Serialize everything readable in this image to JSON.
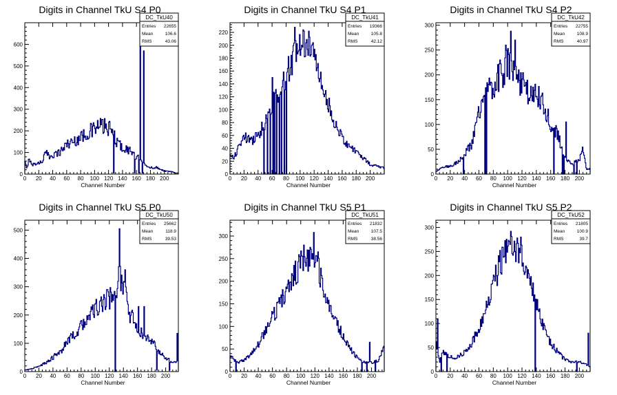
{
  "style": {
    "line_color": "#00007f",
    "frame_color": "#000000",
    "background": "#ffffff"
  },
  "chart_data": [
    {
      "type": "bar",
      "title": "Digits in Channel TkU S4 P0",
      "xlabel": "Channel Number",
      "xlim": [
        0,
        220
      ],
      "ylim": [
        0,
        700
      ],
      "xticks": [
        0,
        20,
        40,
        60,
        80,
        100,
        120,
        140,
        160,
        180,
        200
      ],
      "yticks": [
        100,
        200,
        300,
        400,
        500,
        600
      ],
      "stats": {
        "name": "DC_TkU40",
        "entries_label": "Entries",
        "entries": "22655",
        "mean_label": "Mean",
        "mean": "106.6",
        "rms_label": "RMS",
        "rms": "43.06"
      },
      "profile": [
        [
          0,
          60
        ],
        [
          3,
          20
        ],
        [
          6,
          80
        ],
        [
          10,
          40
        ],
        [
          15,
          50
        ],
        [
          20,
          50
        ],
        [
          25,
          60
        ],
        [
          30,
          100
        ],
        [
          35,
          80
        ],
        [
          40,
          90
        ],
        [
          50,
          100
        ],
        [
          60,
          140
        ],
        [
          70,
          150
        ],
        [
          80,
          170
        ],
        [
          90,
          190
        ],
        [
          100,
          210
        ],
        [
          110,
          225
        ],
        [
          120,
          210
        ],
        [
          125,
          200
        ],
        [
          130,
          160
        ],
        [
          140,
          120
        ],
        [
          150,
          110
        ],
        [
          155,
          100
        ],
        [
          160,
          70
        ],
        [
          165,
          80
        ],
        [
          170,
          60
        ],
        [
          175,
          30
        ],
        [
          190,
          30
        ],
        [
          200,
          15
        ],
        [
          212,
          10
        ],
        [
          216,
          5
        ]
      ],
      "spikes": [
        [
          165,
          640
        ],
        [
          170,
          570
        ],
        [
          128,
          200
        ],
        [
          135,
          150
        ]
      ],
      "dips": [
        [
          127,
          5
        ],
        [
          157,
          5
        ],
        [
          163,
          5
        ],
        [
          168,
          5
        ]
      ],
      "noise": 0.18
    },
    {
      "type": "bar",
      "title": "Digits in Channel TkU S4 P1",
      "xlabel": "Channel Number",
      "xlim": [
        0,
        220
      ],
      "ylim": [
        0,
        235
      ],
      "xticks": [
        0,
        20,
        40,
        60,
        80,
        100,
        120,
        140,
        160,
        180,
        200
      ],
      "yticks": [
        20,
        40,
        60,
        80,
        100,
        120,
        140,
        160,
        180,
        200,
        220
      ],
      "stats": {
        "name": "DC_TkU41",
        "entries_label": "Entries",
        "entries": "19366",
        "mean_label": "Mean",
        "mean": "105.8",
        "rms_label": "RMS",
        "rms": "42.12"
      },
      "profile": [
        [
          0,
          30
        ],
        [
          5,
          25
        ],
        [
          10,
          35
        ],
        [
          20,
          60
        ],
        [
          30,
          50
        ],
        [
          40,
          60
        ],
        [
          50,
          80
        ],
        [
          60,
          110
        ],
        [
          70,
          130
        ],
        [
          80,
          150
        ],
        [
          90,
          180
        ],
        [
          100,
          200
        ],
        [
          110,
          200
        ],
        [
          120,
          185
        ],
        [
          130,
          140
        ],
        [
          140,
          110
        ],
        [
          150,
          80
        ],
        [
          160,
          55
        ],
        [
          170,
          45
        ],
        [
          180,
          35
        ],
        [
          190,
          25
        ],
        [
          200,
          15
        ],
        [
          210,
          12
        ],
        [
          218,
          10
        ]
      ],
      "spikes": [
        [
          92,
          228
        ],
        [
          104,
          224
        ],
        [
          112,
          222
        ],
        [
          60,
          150
        ]
      ],
      "dips": [
        [
          48,
          0
        ],
        [
          53,
          0
        ],
        [
          57,
          0
        ],
        [
          61,
          0
        ],
        [
          63,
          0
        ],
        [
          66,
          0
        ],
        [
          70,
          0
        ],
        [
          73,
          0
        ],
        [
          77,
          0
        ],
        [
          80,
          0
        ]
      ],
      "noise": 0.14
    },
    {
      "type": "bar",
      "title": "Digits in Channel TkU S4 P2",
      "xlabel": "Channel Number",
      "xlim": [
        0,
        215
      ],
      "ylim": [
        0,
        305
      ],
      "xticks": [
        0,
        20,
        40,
        60,
        80,
        100,
        120,
        140,
        160,
        180,
        200
      ],
      "yticks": [
        50,
        100,
        150,
        200,
        250,
        300
      ],
      "stats": {
        "name": "DC_TkU42",
        "entries_label": "Entries",
        "entries": "22755",
        "mean_label": "Mean",
        "mean": "108.9",
        "rms_label": "RMS",
        "rms": "40.97"
      },
      "profile": [
        [
          0,
          5
        ],
        [
          10,
          15
        ],
        [
          20,
          15
        ],
        [
          30,
          25
        ],
        [
          40,
          40
        ],
        [
          50,
          60
        ],
        [
          55,
          90
        ],
        [
          60,
          130
        ],
        [
          70,
          160
        ],
        [
          80,
          180
        ],
        [
          90,
          200
        ],
        [
          100,
          220
        ],
        [
          110,
          210
        ],
        [
          120,
          180
        ],
        [
          130,
          160
        ],
        [
          140,
          160
        ],
        [
          150,
          140
        ],
        [
          160,
          100
        ],
        [
          170,
          80
        ],
        [
          180,
          30
        ],
        [
          190,
          20
        ],
        [
          200,
          30
        ],
        [
          205,
          50
        ],
        [
          210,
          10
        ]
      ],
      "spikes": [
        [
          104,
          288
        ],
        [
          97,
          260
        ],
        [
          110,
          270
        ],
        [
          181,
          105
        ]
      ],
      "dips": [
        [
          38,
          0
        ],
        [
          68,
          0
        ],
        [
          70,
          0
        ],
        [
          164,
          0
        ],
        [
          176,
          0
        ],
        [
          178,
          0
        ],
        [
          192,
          0
        ],
        [
          196,
          0
        ]
      ],
      "noise": 0.16
    },
    {
      "type": "bar",
      "title": "Digits in Channel TkU S5 P0",
      "xlabel": "Channel Number",
      "xlim": [
        0,
        218
      ],
      "ylim": [
        0,
        535
      ],
      "xticks": [
        0,
        20,
        40,
        60,
        80,
        100,
        120,
        140,
        160,
        180,
        200
      ],
      "yticks": [
        100,
        200,
        300,
        400,
        500
      ],
      "stats": {
        "name": "DC_TkU50",
        "entries_label": "Entries",
        "entries": "25662",
        "mean_label": "Mean",
        "mean": "118.9",
        "rms_label": "RMS",
        "rms": "39.53"
      },
      "profile": [
        [
          0,
          5
        ],
        [
          10,
          10
        ],
        [
          20,
          20
        ],
        [
          30,
          30
        ],
        [
          40,
          50
        ],
        [
          50,
          70
        ],
        [
          60,
          100
        ],
        [
          70,
          130
        ],
        [
          80,
          160
        ],
        [
          90,
          190
        ],
        [
          100,
          220
        ],
        [
          110,
          240
        ],
        [
          120,
          260
        ],
        [
          125,
          270
        ],
        [
          130,
          250
        ],
        [
          135,
          350
        ],
        [
          140,
          300
        ],
        [
          145,
          250
        ],
        [
          150,
          200
        ],
        [
          160,
          160
        ],
        [
          170,
          120
        ],
        [
          180,
          110
        ],
        [
          190,
          70
        ],
        [
          200,
          50
        ],
        [
          210,
          30
        ],
        [
          216,
          40
        ]
      ],
      "spikes": [
        [
          134,
          505
        ],
        [
          126,
          270
        ],
        [
          142,
          360
        ],
        [
          161,
          230
        ],
        [
          169,
          230
        ],
        [
          216,
          135
        ]
      ],
      "dips": [
        [
          128,
          0
        ],
        [
          187,
          5
        ],
        [
          205,
          5
        ]
      ],
      "noise": 0.16
    },
    {
      "type": "bar",
      "title": "Digits in Channel TkU S5 P1",
      "xlabel": "Channel Number",
      "xlim": [
        0,
        218
      ],
      "ylim": [
        0,
        335
      ],
      "xticks": [
        0,
        20,
        40,
        60,
        80,
        100,
        120,
        140,
        160,
        180,
        200
      ],
      "yticks": [
        50,
        100,
        150,
        200,
        250,
        300
      ],
      "stats": {
        "name": "DC_TkU51",
        "entries_label": "Entries",
        "entries": "21832",
        "mean_label": "Mean",
        "mean": "107.5",
        "rms_label": "RMS",
        "rms": "38.56"
      },
      "profile": [
        [
          0,
          35
        ],
        [
          10,
          20
        ],
        [
          20,
          25
        ],
        [
          30,
          40
        ],
        [
          40,
          60
        ],
        [
          50,
          90
        ],
        [
          60,
          120
        ],
        [
          70,
          150
        ],
        [
          80,
          180
        ],
        [
          90,
          210
        ],
        [
          100,
          240
        ],
        [
          110,
          250
        ],
        [
          120,
          250
        ],
        [
          130,
          200
        ],
        [
          140,
          150
        ],
        [
          150,
          110
        ],
        [
          160,
          80
        ],
        [
          170,
          50
        ],
        [
          180,
          30
        ],
        [
          190,
          20
        ],
        [
          200,
          20
        ],
        [
          210,
          25
        ],
        [
          216,
          50
        ]
      ],
      "spikes": [
        [
          118,
          308
        ],
        [
          104,
          280
        ],
        [
          124,
          265
        ],
        [
          197,
          65
        ]
      ],
      "dips": [
        [
          8,
          0
        ],
        [
          186,
          0
        ],
        [
          193,
          0
        ],
        [
          205,
          0
        ]
      ],
      "noise": 0.13
    },
    {
      "type": "bar",
      "title": "Digits in Channel TkU S5 P2",
      "xlabel": "Channel Number",
      "xlim": [
        0,
        215
      ],
      "ylim": [
        0,
        315
      ],
      "xticks": [
        0,
        20,
        40,
        60,
        80,
        100,
        120,
        140,
        160,
        180,
        200
      ],
      "yticks": [
        50,
        100,
        150,
        200,
        250,
        300
      ],
      "stats": {
        "name": "DC_TkU52",
        "entries_label": "Entries",
        "entries": "21805",
        "mean_label": "Mean",
        "mean": "100.9",
        "rms_label": "RMS",
        "rms": "39.7"
      },
      "profile": [
        [
          0,
          60
        ],
        [
          5,
          20
        ],
        [
          10,
          40
        ],
        [
          20,
          30
        ],
        [
          30,
          30
        ],
        [
          40,
          40
        ],
        [
          50,
          60
        ],
        [
          60,
          90
        ],
        [
          70,
          130
        ],
        [
          80,
          180
        ],
        [
          90,
          230
        ],
        [
          100,
          260
        ],
        [
          110,
          270
        ],
        [
          120,
          230
        ],
        [
          130,
          190
        ],
        [
          140,
          140
        ],
        [
          150,
          90
        ],
        [
          160,
          60
        ],
        [
          170,
          40
        ],
        [
          180,
          25
        ],
        [
          190,
          20
        ],
        [
          200,
          20
        ],
        [
          210,
          15
        ],
        [
          214,
          10
        ]
      ],
      "spikes": [
        [
          104,
          292
        ],
        [
          2,
          110
        ],
        [
          212,
          80
        ],
        [
          118,
          280
        ]
      ],
      "dips": [
        [
          7,
          0
        ],
        [
          15,
          0
        ],
        [
          138,
          0
        ],
        [
          196,
          0
        ]
      ],
      "noise": 0.14
    }
  ]
}
